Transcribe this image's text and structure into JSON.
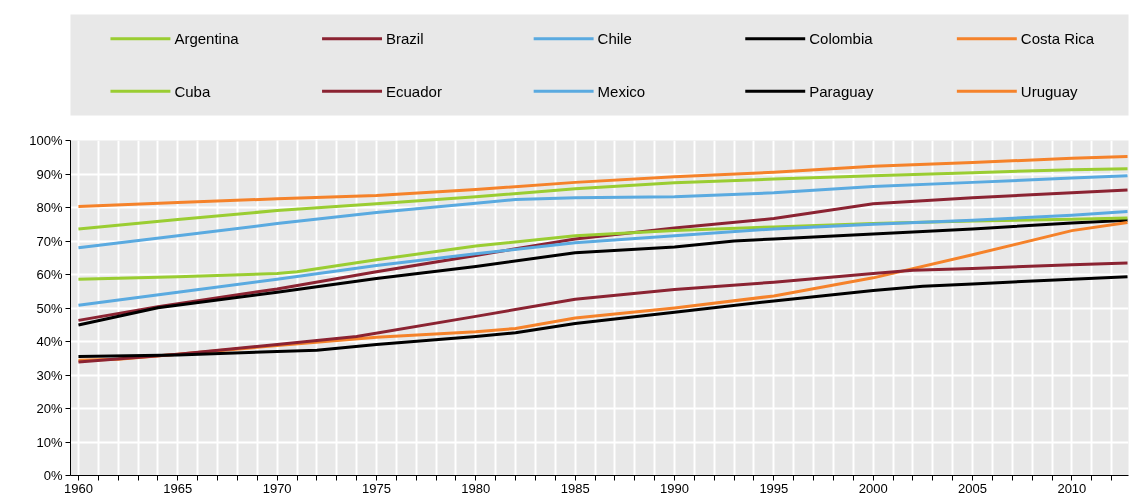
{
  "chart_data": {
    "type": "line",
    "legend": "top",
    "grid": true,
    "line_style": "solid",
    "marker": "none",
    "xlim": [
      1959.6,
      2012.85
    ],
    "ylim": [
      0,
      100
    ],
    "xticks": [
      1960,
      {
        "value": 1961,
        "label": null
      },
      {
        "value": 1962,
        "label": null
      },
      {
        "value": 1963,
        "label": null
      },
      {
        "value": 1964,
        "label": null
      },
      1965,
      {
        "value": 1966,
        "label": null
      },
      {
        "value": 1967,
        "label": null
      },
      {
        "value": 1968,
        "label": null
      },
      {
        "value": 1969,
        "label": null
      },
      1970,
      {
        "value": 1971,
        "label": null
      },
      {
        "value": 1972,
        "label": null
      },
      {
        "value": 1973,
        "label": null
      },
      {
        "value": 1974,
        "label": null
      },
      1975,
      {
        "value": 1976,
        "label": null
      },
      {
        "value": 1977,
        "label": null
      },
      {
        "value": 1978,
        "label": null
      },
      {
        "value": 1979,
        "label": null
      },
      1980,
      {
        "value": 1981,
        "label": null
      },
      {
        "value": 1982,
        "label": null
      },
      {
        "value": 1983,
        "label": null
      },
      {
        "value": 1984,
        "label": null
      },
      1985,
      {
        "value": 1986,
        "label": null
      },
      {
        "value": 1987,
        "label": null
      },
      {
        "value": 1988,
        "label": null
      },
      {
        "value": 1989,
        "label": null
      },
      1990,
      {
        "value": 1991,
        "label": null
      },
      {
        "value": 1992,
        "label": null
      },
      {
        "value": 1993,
        "label": null
      },
      {
        "value": 1994,
        "label": null
      },
      1995,
      {
        "value": 1996,
        "label": null
      },
      {
        "value": 1997,
        "label": null
      },
      {
        "value": 1998,
        "label": null
      },
      {
        "value": 1999,
        "label": null
      },
      2000,
      {
        "value": 2001,
        "label": null
      },
      {
        "value": 2002,
        "label": null
      },
      {
        "value": 2003,
        "label": null
      },
      {
        "value": 2004,
        "label": null
      },
      2005,
      {
        "value": 2006,
        "label": null
      },
      {
        "value": 2007,
        "label": null
      },
      {
        "value": 2008,
        "label": null
      },
      {
        "value": 2009,
        "label": null
      },
      2010,
      {
        "value": 2011,
        "label": null
      },
      {
        "value": 2012,
        "label": null
      }
    ],
    "yticks": [
      {
        "value": 0,
        "label": "0%"
      },
      {
        "value": 10,
        "label": "10%"
      },
      {
        "value": 20,
        "label": "20%"
      },
      {
        "value": 30,
        "label": "30%"
      },
      {
        "value": 40,
        "label": "40%"
      },
      {
        "value": 50,
        "label": "50%"
      },
      {
        "value": 60,
        "label": "60%"
      },
      {
        "value": 70,
        "label": "70%"
      },
      {
        "value": 80,
        "label": "80%"
      },
      {
        "value": 90,
        "label": "90%"
      },
      {
        "value": 100,
        "label": "100%"
      }
    ],
    "series": [
      {
        "name": "Argentina",
        "color": "#9acd32",
        "x": [
          1960,
          1965,
          1970,
          1975,
          1980,
          1985,
          1990,
          1995,
          2000,
          2005,
          2010,
          2012.8
        ],
        "values": [
          73.6,
          76.4,
          79.1,
          81.1,
          83.2,
          85.6,
          87.4,
          88.5,
          89.5,
          90.4,
          91.3,
          91.6
        ]
      },
      {
        "name": "Brazil",
        "color": "#8b2332",
        "x": [
          1960,
          1964,
          1970,
          1975,
          1980,
          1985,
          1990,
          1995,
          2000,
          2005,
          2010,
          2012.8
        ],
        "values": [
          46.3,
          50.4,
          55.7,
          60.8,
          65.7,
          70.6,
          73.9,
          76.7,
          81.1,
          82.9,
          84.4,
          85.2
        ]
      },
      {
        "name": "Chile",
        "color": "#5aaae0",
        "x": [
          1960,
          1965,
          1970,
          1975,
          1980,
          1982,
          1985,
          1990,
          1995,
          2000,
          2005,
          2010,
          2012.8
        ],
        "values": [
          68.0,
          71.6,
          75.2,
          78.5,
          81.3,
          82.4,
          82.9,
          83.2,
          84.4,
          86.3,
          87.5,
          88.8,
          89.5
        ]
      },
      {
        "name": "Colombia",
        "color": "#000000",
        "x": [
          1960,
          1964,
          1970,
          1975,
          1980,
          1985,
          1990,
          1993,
          1995,
          2000,
          2005,
          2010,
          2012.8
        ],
        "values": [
          44.9,
          50.1,
          54.7,
          58.8,
          62.4,
          66.5,
          68.2,
          70.0,
          70.6,
          72.1,
          73.6,
          75.4,
          76.2
        ]
      },
      {
        "name": "Costa Rica",
        "color": "#f5822a",
        "x": [
          1960,
          1962,
          1965,
          1970,
          1975,
          1980,
          1982,
          1985,
          1990,
          1995,
          2000,
          2005,
          2010,
          2012.8
        ],
        "values": [
          34.4,
          34.7,
          36.2,
          38.8,
          41.3,
          42.9,
          43.9,
          47.0,
          50.0,
          53.6,
          59.0,
          65.9,
          73.1,
          75.5
        ]
      },
      {
        "name": "Cuba",
        "color": "#9acd32",
        "x": [
          1960,
          1965,
          1970,
          1971,
          1975,
          1980,
          1985,
          1990,
          1995,
          2000,
          2005,
          2010,
          2012.8
        ],
        "values": [
          58.6,
          59.3,
          60.3,
          60.8,
          64.4,
          68.5,
          71.6,
          73.1,
          74.2,
          75.2,
          76.0,
          76.5,
          76.9
        ]
      },
      {
        "name": "Ecuador",
        "color": "#8b2332",
        "x": [
          1960,
          1965,
          1970,
          1974,
          1980,
          1985,
          1990,
          1995,
          2000,
          2002,
          2005,
          2010,
          2012.8
        ],
        "values": [
          33.9,
          36.2,
          39.1,
          41.5,
          47.5,
          52.6,
          55.5,
          57.7,
          60.3,
          61.3,
          61.8,
          62.9,
          63.4
        ]
      },
      {
        "name": "Mexico",
        "color": "#5aaae0",
        "x": [
          1960,
          1965,
          1970,
          1975,
          1980,
          1985,
          1990,
          1995,
          2000,
          2005,
          2010,
          2012.8
        ],
        "values": [
          50.8,
          54.7,
          58.6,
          62.7,
          66.2,
          69.5,
          71.6,
          73.6,
          75.0,
          76.2,
          77.7,
          78.8
        ]
      },
      {
        "name": "Paraguay",
        "color": "#000000",
        "x": [
          1960,
          1965,
          1970,
          1972,
          1975,
          1980,
          1982,
          1985,
          1990,
          1995,
          2000,
          2002.5,
          2005,
          2010,
          2012.8
        ],
        "values": [
          35.5,
          36.0,
          37.0,
          37.4,
          39.1,
          41.5,
          42.6,
          45.4,
          48.7,
          52.1,
          55.2,
          56.5,
          57.2,
          58.6,
          59.3
        ]
      },
      {
        "name": "Uruguay",
        "color": "#f5822a",
        "x": [
          1960,
          1965,
          1970,
          1975,
          1980,
          1985,
          1990,
          1995,
          2000,
          2005,
          2010,
          2012.8
        ],
        "values": [
          80.3,
          81.5,
          82.6,
          83.6,
          85.4,
          87.5,
          89.2,
          90.5,
          92.3,
          93.4,
          94.7,
          95.2
        ]
      }
    ]
  }
}
